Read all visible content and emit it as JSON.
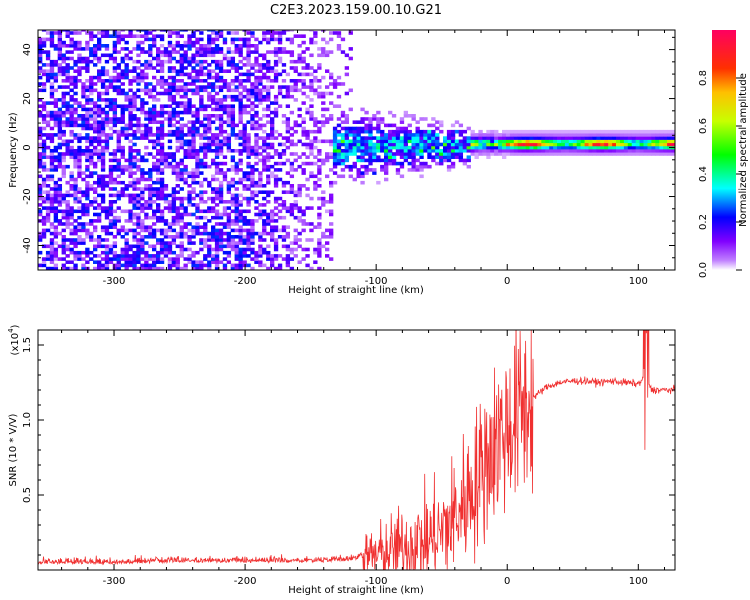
{
  "chart_data": [
    {
      "type": "heatmap",
      "title": "C2E3.2023.159.00.10.G21",
      "xlabel": "Height of straight line (km)",
      "ylabel": "Frequency (Hz)",
      "xlim": [
        -358,
        128
      ],
      "ylim": [
        -50,
        48
      ],
      "xticks": [
        -300,
        -200,
        -100,
        0,
        100
      ],
      "yticks": [
        -40,
        -20,
        0,
        20,
        40
      ],
      "xtick_labels": [
        "-300",
        "-200",
        "-100",
        "0",
        "100"
      ],
      "ytick_labels": [
        "-40",
        "-20",
        "0",
        "20",
        "40"
      ],
      "colorbar": {
        "label": "Normalized spectral amplitude",
        "range": [
          0.0,
          1.0
        ],
        "ticks": [
          0.0,
          0.2,
          0.4,
          0.6,
          0.8
        ],
        "tick_labels": [
          "0.0",
          "0.2",
          "0.4",
          "0.6",
          "0.8"
        ],
        "colormap": [
          "#ffffff",
          "#8000ff",
          "#0000ff",
          "#00ffff",
          "#00ff00",
          "#ffff00",
          "#ff8000",
          "#ff0000",
          "#ff0060"
        ]
      },
      "regions": [
        {
          "x": [
            -358,
            -135
          ],
          "freq_spread": 48,
          "amplitude": 0.12
        },
        {
          "x": [
            -135,
            -30
          ],
          "freq_spread": 12,
          "amplitude": 0.25
        },
        {
          "x": [
            -30,
            128
          ],
          "freq_spread": 2,
          "amplitude": 0.7
        }
      ]
    },
    {
      "type": "line",
      "xlabel": "Height of straight line (km)",
      "ylabel": "SNR (10 * V/V)",
      "ylabel_multiplier": "(x10",
      "ylabel_exponent": "4",
      "ylabel_close": ")",
      "xlim": [
        -358,
        128
      ],
      "ylim": [
        0.0,
        1.6
      ],
      "xticks": [
        -300,
        -200,
        -100,
        0,
        100
      ],
      "yticks": [
        0.5,
        1.0,
        1.5
      ],
      "xtick_labels": [
        "-300",
        "-200",
        "-100",
        "0",
        "100"
      ],
      "ytick_labels": [
        "0.5",
        "1.0",
        "1.5"
      ],
      "color": "#f03030",
      "series": [
        {
          "x": [
            -358,
            -300,
            -250,
            -200,
            -150,
            -120,
            -100,
            -80,
            -60,
            -50,
            -40,
            -30,
            -20,
            -10,
            0,
            10,
            20,
            30,
            40,
            50,
            60,
            70,
            80,
            90,
            100,
            106,
            110,
            120,
            128
          ],
          "values": [
            0.04,
            0.04,
            0.05,
            0.05,
            0.05,
            0.06,
            0.1,
            0.15,
            0.2,
            0.25,
            0.35,
            0.5,
            0.65,
            0.85,
            0.95,
            1.05,
            1.15,
            1.22,
            1.25,
            1.26,
            1.26,
            1.25,
            1.26,
            1.25,
            1.24,
            1.3,
            1.2,
            1.2,
            1.2
          ]
        }
      ]
    }
  ]
}
